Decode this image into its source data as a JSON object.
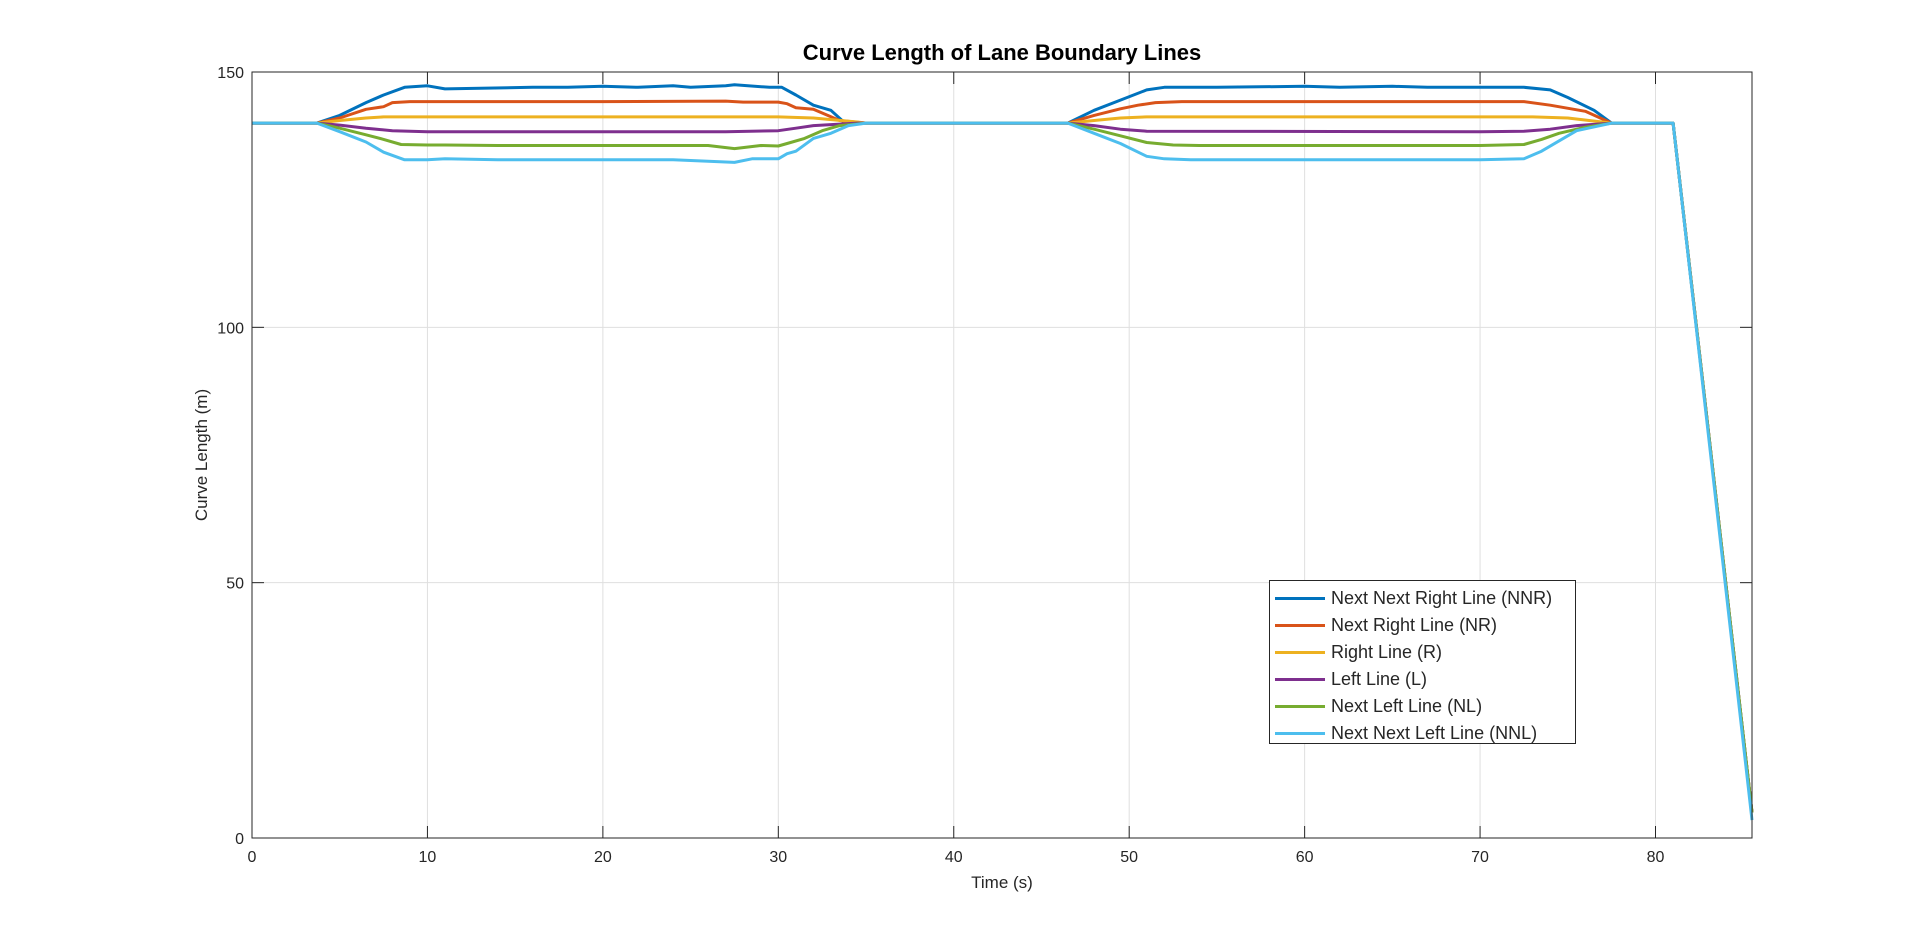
{
  "chart_data": {
    "type": "line",
    "title": "Curve Length of Lane Boundary Lines",
    "xlabel": "Time (s)",
    "ylabel": "Curve Length (m)",
    "xlim": [
      0,
      85.5
    ],
    "ylim": [
      0,
      150
    ],
    "xticks": [
      0,
      10,
      20,
      30,
      40,
      50,
      60,
      70,
      80
    ],
    "yticks": [
      0,
      50,
      100,
      150
    ],
    "grid": true,
    "legend_position": "lower-right",
    "series": [
      {
        "name": "Next Next Right Line (NNR)",
        "color": "#0072BD",
        "x": [
          0,
          3.7,
          5,
          6.5,
          7.5,
          8.7,
          10,
          11,
          16,
          18,
          20,
          22,
          24,
          25,
          27,
          27.5,
          29.5,
          30.2,
          31,
          32,
          33,
          33.8,
          35,
          46.5,
          48,
          49.5,
          51,
          52,
          55,
          60,
          62,
          65,
          67,
          70,
          72.5,
          74,
          75,
          76.5,
          77.5,
          81,
          85.5
        ],
        "y": [
          140,
          140,
          141.5,
          144,
          145.5,
          147,
          147.3,
          146.7,
          147,
          147,
          147.2,
          147,
          147.3,
          147,
          147.3,
          147.5,
          147,
          147,
          145.5,
          143.5,
          142.5,
          140,
          140,
          140,
          142.5,
          144.5,
          146.5,
          147,
          147,
          147.2,
          147,
          147.2,
          147,
          147,
          147,
          146.5,
          145,
          142.5,
          140,
          140,
          5
        ]
      },
      {
        "name": "Next Right Line (NR)",
        "color": "#D95319",
        "x": [
          0,
          3.7,
          5,
          6.5,
          7.5,
          8,
          9,
          10,
          20,
          27,
          28,
          30,
          30.5,
          31,
          32,
          33.5,
          35,
          46.5,
          48,
          49.5,
          50.5,
          51.5,
          53,
          70,
          72.5,
          74,
          76,
          77.5,
          81,
          85.5
        ],
        "y": [
          140,
          140,
          141,
          142.7,
          143.2,
          144,
          144.2,
          144.2,
          144.2,
          144.3,
          144.1,
          144.1,
          143.8,
          143,
          142.7,
          140.5,
          140,
          140,
          141.5,
          142.8,
          143.5,
          144,
          144.2,
          144.2,
          144.2,
          143.5,
          142.3,
          140,
          140,
          5
        ]
      },
      {
        "name": "Right Line (R)",
        "color": "#EDB120",
        "x": [
          0,
          3.7,
          5,
          6.5,
          7.5,
          20,
          30,
          32,
          34.5,
          35,
          46.5,
          48,
          49.5,
          51,
          70,
          73,
          75,
          77.5,
          81,
          85.5
        ],
        "y": [
          140,
          140,
          140.5,
          141,
          141.2,
          141.2,
          141.2,
          141,
          140.2,
          140,
          140,
          140.5,
          141,
          141.2,
          141.2,
          141.2,
          141,
          140,
          140,
          5
        ]
      },
      {
        "name": "Left Line (L)",
        "color": "#7E2F8E",
        "x": [
          0,
          3.7,
          5,
          6.5,
          8,
          10,
          20,
          27,
          30,
          31,
          32,
          34.5,
          35,
          46.5,
          48,
          49.5,
          51,
          70,
          72.5,
          74,
          75.5,
          77.5,
          81,
          85.5
        ],
        "y": [
          140,
          140,
          139.6,
          139,
          138.5,
          138.3,
          138.3,
          138.3,
          138.5,
          139,
          139.5,
          140,
          140,
          140,
          139.5,
          138.8,
          138.4,
          138.3,
          138.4,
          138.8,
          139.5,
          140,
          140,
          5
        ]
      },
      {
        "name": "Next Left Line (NL)",
        "color": "#77AC30",
        "x": [
          0,
          3.7,
          5,
          6.5,
          7.5,
          8.5,
          10,
          11,
          14,
          20,
          26,
          27.5,
          29,
          30,
          30.5,
          31.5,
          32.5,
          33.5,
          35,
          46.5,
          48,
          49.5,
          51,
          52.5,
          54,
          58,
          65,
          70,
          72.5,
          73.5,
          74.5,
          76,
          77.5,
          81,
          85.5
        ],
        "y": [
          140,
          140,
          139,
          137.7,
          136.8,
          135.8,
          135.7,
          135.7,
          135.6,
          135.6,
          135.6,
          135,
          135.6,
          135.5,
          136,
          137,
          138.5,
          139.5,
          140,
          140,
          138.8,
          137.5,
          136.2,
          135.7,
          135.6,
          135.6,
          135.6,
          135.6,
          135.8,
          136.8,
          138,
          139.2,
          140,
          140,
          5
        ]
      },
      {
        "name": "Next Next Left Line (NNL)",
        "color": "#4DBEEE",
        "x": [
          0,
          3.7,
          5,
          6.5,
          7.5,
          8.7,
          10,
          11,
          14,
          20,
          24,
          27.5,
          28.5,
          30,
          30.5,
          31,
          32,
          33,
          34,
          35,
          46.5,
          48,
          49.5,
          51,
          52,
          53.5,
          55,
          60,
          65,
          70,
          72.5,
          73.5,
          74.5,
          75.5,
          77.5,
          81,
          85.5
        ],
        "y": [
          140,
          140,
          138.3,
          136.3,
          134.3,
          132.8,
          132.8,
          133,
          132.8,
          132.8,
          132.8,
          132.3,
          133,
          133,
          134,
          134.5,
          137,
          138,
          139.5,
          140,
          140,
          138,
          136,
          133.5,
          133,
          132.8,
          132.8,
          132.8,
          132.8,
          132.8,
          133,
          134.5,
          136.5,
          138.5,
          140,
          140,
          3.5
        ]
      }
    ]
  }
}
